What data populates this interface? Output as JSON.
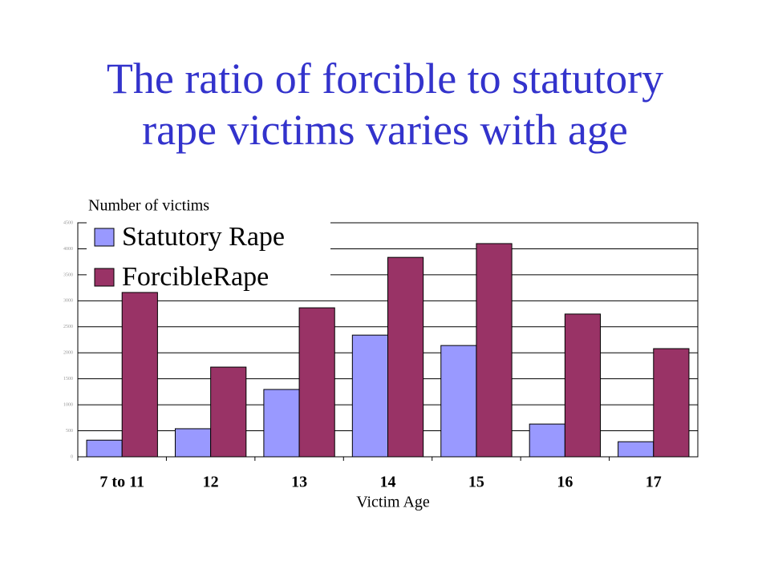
{
  "chart_data": {
    "type": "bar",
    "title": "The ratio of forcible to statutory rape victims varies with age",
    "y_label": "Number of victims",
    "x_label": "Victim Age",
    "categories": [
      "7 to 11",
      "12",
      "13",
      "14",
      "15",
      "16",
      "17"
    ],
    "series": [
      {
        "name": "Statutory Rape",
        "color": "#9999ff",
        "values": [
          320,
          540,
          1295,
          2340,
          2140,
          630,
          290
        ]
      },
      {
        "name": "ForcibleRape",
        "color": "#993366",
        "values": [
          3160,
          1725,
          2865,
          3835,
          4100,
          2745,
          2080
        ]
      }
    ],
    "ylim": [
      0,
      4500
    ],
    "yticks": [
      0,
      500,
      1000,
      1500,
      2000,
      2500,
      3000,
      3500,
      4000,
      4500
    ],
    "grid": true,
    "legend": "top-left"
  }
}
